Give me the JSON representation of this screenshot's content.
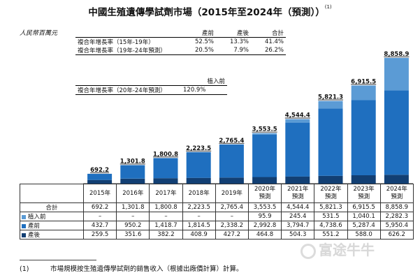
{
  "title": "中國生殖遺傳學試劑市場（2015年至2024年（預測））",
  "title_note": "(1)",
  "unit": "人民幣百萬元",
  "cagr_table": {
    "headers": [
      "產前",
      "產後",
      "合計"
    ],
    "rows": [
      {
        "label": "複合年增長率（15年-19年）",
        "values": [
          "52.5%",
          "13.3%",
          "41.4%"
        ]
      },
      {
        "label": "複合年增長率（19年-24年預測）",
        "values": [
          "20.5%",
          "7.9%",
          "26.2%"
        ]
      }
    ]
  },
  "cagr_table2": {
    "header": "植入前",
    "row": {
      "label": "複合年增長率（20年-24年預測）",
      "value": "120.9%"
    }
  },
  "colors": {
    "preimplantation": "#5b9bd5",
    "prenatal": "#1f6fbf",
    "postnatal": "#123f73"
  },
  "chart_data": {
    "type": "bar",
    "stacked": true,
    "categories": [
      "2015年",
      "2016年",
      "2017年",
      "2018年",
      "2019年",
      "2020年預測",
      "2021年預測",
      "2022年預測",
      "2023年預測",
      "2024年預測"
    ],
    "category_lines": [
      [
        "2015年"
      ],
      [
        "2016年"
      ],
      [
        "2017年"
      ],
      [
        "2018年"
      ],
      [
        "2019年"
      ],
      [
        "2020年",
        "預測"
      ],
      [
        "2021年",
        "預測"
      ],
      [
        "2022年",
        "預測"
      ],
      [
        "2023年",
        "預測"
      ],
      [
        "2024年",
        "預測"
      ]
    ],
    "series": [
      {
        "name": "產後",
        "values": [
          259.5,
          351.6,
          382.2,
          408.9,
          427.2,
          464.8,
          504.3,
          551.2,
          588.0,
          626.2
        ]
      },
      {
        "name": "產前",
        "values": [
          432.7,
          950.2,
          1418.7,
          1814.5,
          2338.2,
          2992.8,
          3794.7,
          4738.6,
          5287.4,
          5950.4
        ]
      },
      {
        "name": "植入前",
        "values": [
          null,
          null,
          null,
          null,
          null,
          95.9,
          245.4,
          531.5,
          1040.1,
          2282.3
        ]
      }
    ],
    "totals": [
      692.2,
      1301.8,
      1800.8,
      2223.5,
      2765.4,
      3553.5,
      4544.4,
      5821.3,
      6915.5,
      8858.9
    ],
    "total_labels": [
      "692.2",
      "1,301.8",
      "1,800.8",
      "2,223.5",
      "2,765.4",
      "3,553.5",
      "4,544.4",
      "5,821.3",
      "6,915.5",
      "8,858.9"
    ],
    "ylim": [
      0,
      9000
    ],
    "legend": "table-below"
  },
  "data_table": {
    "rows": [
      {
        "label": "合計",
        "swatch": null,
        "cells": [
          "692.2",
          "1,301.8",
          "1,800.8",
          "2,223.5",
          "2,765.4",
          "3,553.5",
          "4,544.4",
          "5,821.3",
          "6,915.5",
          "8,858.9"
        ]
      },
      {
        "label": "植入前",
        "swatch": "preimplantation",
        "cells": [
          "–",
          "–",
          "–",
          "–",
          "–",
          "95.9",
          "245.4",
          "531.5",
          "1,040.1",
          "2,282.3"
        ]
      },
      {
        "label": "產前",
        "swatch": "prenatal",
        "cells": [
          "432.7",
          "950.2",
          "1,418.7",
          "1,814.5",
          "2,338.2",
          "2,992.8",
          "3,794.7",
          "4,738.6",
          "5,287.4",
          "5,950.4"
        ]
      },
      {
        "label": "產後",
        "swatch": "postnatal",
        "cells": [
          "259.5",
          "351.6",
          "382.2",
          "408.9",
          "427.2",
          "464.8",
          "504.3",
          "551.2",
          "588.0",
          "626.2"
        ]
      }
    ]
  },
  "footnote": {
    "num": "(1)",
    "text": "市場規模按生殖遺傳學試劑的銷售收入（根據出廠價計算）計算。"
  },
  "watermark": "富途牛牛"
}
